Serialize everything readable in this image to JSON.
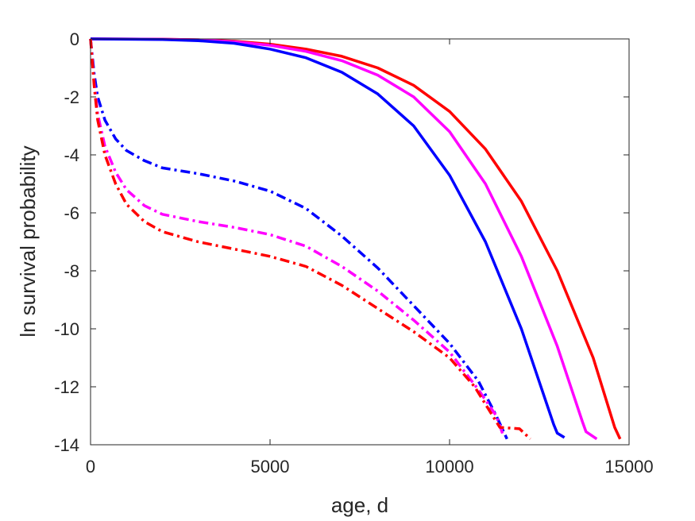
{
  "chart_data": {
    "type": "line",
    "title": "",
    "xlabel": "age, d",
    "ylabel": "ln survival probability",
    "xlim": [
      0,
      15000
    ],
    "ylim": [
      -14,
      0
    ],
    "xticks": [
      0,
      5000,
      10000,
      15000
    ],
    "yticks": [
      -14,
      -12,
      -10,
      -8,
      -6,
      -4,
      -2,
      0
    ],
    "grid": false,
    "legend": "none",
    "series": [
      {
        "color": "#ff0000",
        "style": "solid",
        "points": [
          [
            0,
            0
          ],
          [
            2000,
            -0.01
          ],
          [
            3000,
            -0.03
          ],
          [
            4000,
            -0.08
          ],
          [
            5000,
            -0.18
          ],
          [
            6000,
            -0.35
          ],
          [
            7000,
            -0.6
          ],
          [
            8000,
            -1.0
          ],
          [
            9000,
            -1.6
          ],
          [
            10000,
            -2.5
          ],
          [
            11000,
            -3.8
          ],
          [
            12000,
            -5.6
          ],
          [
            13000,
            -8.0
          ],
          [
            14000,
            -11.0
          ],
          [
            14450,
            -12.8
          ],
          [
            14600,
            -13.4
          ],
          [
            14750,
            -13.8
          ]
        ]
      },
      {
        "color": "#ff00ff",
        "style": "solid",
        "points": [
          [
            0,
            0
          ],
          [
            2000,
            -0.01
          ],
          [
            3000,
            -0.03
          ],
          [
            4000,
            -0.1
          ],
          [
            5000,
            -0.22
          ],
          [
            6000,
            -0.43
          ],
          [
            7000,
            -0.75
          ],
          [
            8000,
            -1.25
          ],
          [
            9000,
            -2.0
          ],
          [
            10000,
            -3.2
          ],
          [
            11000,
            -5.0
          ],
          [
            12000,
            -7.5
          ],
          [
            13000,
            -10.6
          ],
          [
            13700,
            -13.2
          ],
          [
            13800,
            -13.55
          ],
          [
            14100,
            -13.8
          ]
        ]
      },
      {
        "color": "#0000ff",
        "style": "solid",
        "points": [
          [
            0,
            0
          ],
          [
            2000,
            -0.02
          ],
          [
            3000,
            -0.06
          ],
          [
            4000,
            -0.15
          ],
          [
            5000,
            -0.35
          ],
          [
            6000,
            -0.65
          ],
          [
            7000,
            -1.15
          ],
          [
            8000,
            -1.9
          ],
          [
            9000,
            -3.0
          ],
          [
            10000,
            -4.7
          ],
          [
            11000,
            -7.0
          ],
          [
            12000,
            -10.0
          ],
          [
            12900,
            -13.3
          ],
          [
            13000,
            -13.6
          ],
          [
            13200,
            -13.75
          ]
        ]
      },
      {
        "color": "#0000ff",
        "style": "dashdot",
        "points": [
          [
            0,
            0
          ],
          [
            100,
            -1.2
          ],
          [
            200,
            -2.0
          ],
          [
            400,
            -2.8
          ],
          [
            700,
            -3.45
          ],
          [
            1000,
            -3.85
          ],
          [
            1500,
            -4.2
          ],
          [
            2000,
            -4.45
          ],
          [
            3000,
            -4.65
          ],
          [
            4000,
            -4.9
          ],
          [
            5000,
            -5.25
          ],
          [
            6000,
            -5.85
          ],
          [
            7000,
            -6.8
          ],
          [
            8000,
            -7.9
          ],
          [
            9000,
            -9.2
          ],
          [
            10000,
            -10.5
          ],
          [
            10800,
            -11.8
          ],
          [
            11300,
            -13.0
          ],
          [
            11600,
            -13.8
          ]
        ]
      },
      {
        "color": "#ff00ff",
        "style": "dashdot",
        "points": [
          [
            0,
            0
          ],
          [
            100,
            -1.5
          ],
          [
            200,
            -2.6
          ],
          [
            400,
            -3.7
          ],
          [
            700,
            -4.6
          ],
          [
            1000,
            -5.2
          ],
          [
            1500,
            -5.75
          ],
          [
            2000,
            -6.05
          ],
          [
            3000,
            -6.3
          ],
          [
            4000,
            -6.5
          ],
          [
            5000,
            -6.75
          ],
          [
            6000,
            -7.15
          ],
          [
            7000,
            -7.85
          ],
          [
            8000,
            -8.7
          ],
          [
            9000,
            -9.7
          ],
          [
            10000,
            -10.8
          ],
          [
            10800,
            -12.1
          ],
          [
            11300,
            -13.0
          ],
          [
            11500,
            -13.7
          ]
        ]
      },
      {
        "color": "#ff0000",
        "style": "dashdot",
        "points": [
          [
            0,
            0
          ],
          [
            100,
            -1.6
          ],
          [
            200,
            -2.8
          ],
          [
            400,
            -4.0
          ],
          [
            700,
            -5.0
          ],
          [
            1000,
            -5.7
          ],
          [
            1500,
            -6.3
          ],
          [
            2000,
            -6.65
          ],
          [
            3000,
            -7.0
          ],
          [
            4000,
            -7.25
          ],
          [
            5000,
            -7.5
          ],
          [
            6000,
            -7.85
          ],
          [
            7000,
            -8.5
          ],
          [
            8000,
            -9.3
          ],
          [
            9000,
            -10.1
          ],
          [
            10000,
            -11.0
          ],
          [
            10700,
            -12.0
          ],
          [
            11100,
            -12.8
          ],
          [
            11400,
            -13.4
          ],
          [
            11950,
            -13.45
          ],
          [
            12250,
            -13.8
          ]
        ]
      }
    ]
  }
}
